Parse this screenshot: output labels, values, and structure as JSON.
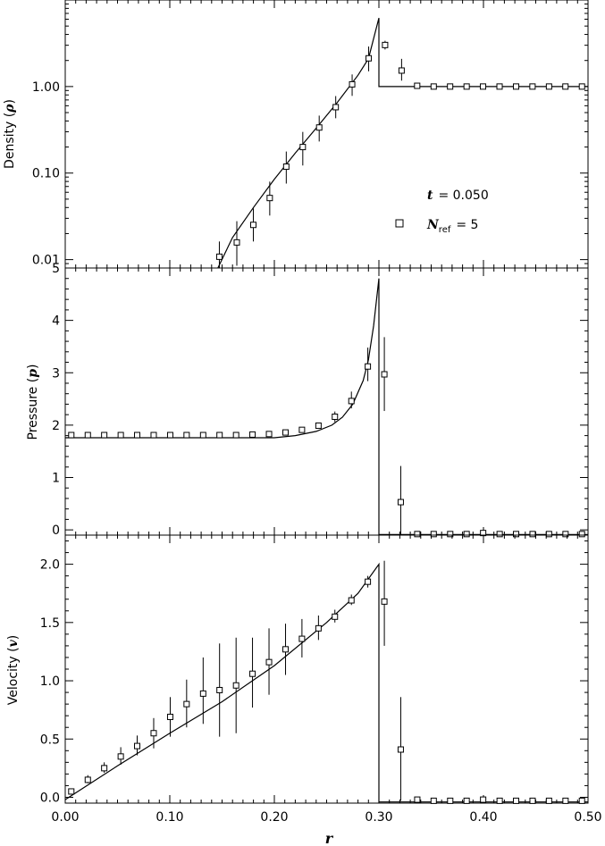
{
  "chart_data": [
    {
      "type": "line",
      "panel": "density",
      "ylabel": "Density (",
      "ylabel_symbol": "ρ",
      "yscale": "log",
      "ylim": [
        0.008,
        10
      ],
      "xlim": [
        0,
        0.5
      ],
      "yticks": [
        0.01,
        0.1,
        1.0
      ],
      "yticklabels": [
        "0.01",
        "0.10",
        "1.00"
      ],
      "annotation": {
        "t_symbol": "t",
        "t_text": "= 0.050",
        "legend_symbol": "N",
        "legend_sub": "ref",
        "legend_text": "= 5",
        "legend_marker": "square"
      },
      "series": [
        {
          "kind": "line",
          "x": [
            0.146,
            0.16,
            0.18,
            0.2,
            0.22,
            0.24,
            0.26,
            0.28,
            0.29,
            0.3,
            0.3,
            0.5
          ],
          "y": [
            0.008,
            0.018,
            0.04,
            0.085,
            0.17,
            0.33,
            0.65,
            1.35,
            2.1,
            6.2,
            1.0,
            1.0
          ]
        },
        {
          "kind": "points",
          "x": [
            0.1474,
            0.1641,
            0.1799,
            0.1956,
            0.2114,
            0.2272,
            0.2429,
            0.2587,
            0.2744,
            0.2902,
            0.3059,
            0.3217,
            0.3366,
            0.3524,
            0.3681,
            0.3839,
            0.3996,
            0.4154,
            0.4312,
            0.4469,
            0.4627,
            0.4784,
            0.4942
          ],
          "y": [
            0.0108,
            0.0158,
            0.0252,
            0.0515,
            0.1187,
            0.2,
            0.3362,
            0.5777,
            1.06,
            2.12,
            3.02,
            1.53,
            1.02,
            1.0,
            1.0,
            1.0,
            1.0,
            1.0,
            1.0,
            1.0,
            1.0,
            1.0,
            1.0
          ],
          "ylo": [
            0.0075,
            0.0085,
            0.0162,
            0.0323,
            0.0756,
            0.1224,
            0.2318,
            0.4302,
            0.78,
            1.5,
            2.68,
            1.17,
            1.0,
            1.0,
            1.0,
            1.0,
            1.0,
            1.0,
            1.0,
            1.0,
            1.0,
            1.0,
            1.0
          ],
          "yhi": [
            0.0162,
            0.0278,
            0.0391,
            0.0797,
            0.1775,
            0.299,
            0.4613,
            0.776,
            1.38,
            2.9,
            3.38,
            2.09,
            1.04,
            1.0,
            1.0,
            1.0,
            1.0,
            1.0,
            1.0,
            1.0,
            1.0,
            1.0,
            1.0
          ]
        }
      ]
    },
    {
      "type": "line",
      "panel": "pressure",
      "ylabel": "Pressure (",
      "ylabel_symbol": "p",
      "yscale": "linear",
      "ylim": [
        -0.1,
        5
      ],
      "xlim": [
        0,
        0.5
      ],
      "yticks": [
        0,
        1,
        2,
        3,
        4,
        5
      ],
      "yticklabels": [
        "0",
        "1",
        "2",
        "3",
        "4",
        "5"
      ],
      "series": [
        {
          "kind": "line",
          "x": [
            0,
            0.2,
            0.22,
            0.24,
            0.255,
            0.265,
            0.275,
            0.285,
            0.29,
            0.295,
            0.3,
            0.3,
            0.5
          ],
          "y": [
            1.76,
            1.76,
            1.8,
            1.88,
            2.0,
            2.15,
            2.4,
            2.85,
            3.25,
            3.9,
            4.8,
            -0.09,
            -0.09
          ]
        },
        {
          "kind": "points",
          "x": [
            0.0058,
            0.0216,
            0.0373,
            0.0531,
            0.0688,
            0.0846,
            0.1004,
            0.1161,
            0.1319,
            0.1476,
            0.1634,
            0.1791,
            0.1949,
            0.2107,
            0.2264,
            0.2422,
            0.2579,
            0.2737,
            0.2894,
            0.3052,
            0.3209,
            0.3367,
            0.3524,
            0.3682,
            0.3839,
            0.3997,
            0.4155,
            0.4312,
            0.447,
            0.4627,
            0.4785,
            0.4942
          ],
          "y": [
            1.81,
            1.81,
            1.81,
            1.81,
            1.81,
            1.81,
            1.81,
            1.81,
            1.81,
            1.81,
            1.81,
            1.82,
            1.83,
            1.86,
            1.91,
            1.99,
            2.16,
            2.46,
            3.12,
            2.97,
            0.53,
            -0.08,
            -0.08,
            -0.08,
            -0.08,
            -0.06,
            -0.08,
            -0.08,
            -0.08,
            -0.08,
            -0.08,
            -0.08
          ],
          "ylo": [
            1.81,
            1.81,
            1.81,
            1.81,
            1.81,
            1.81,
            1.81,
            1.81,
            1.81,
            1.81,
            1.81,
            1.82,
            1.83,
            1.86,
            1.91,
            1.96,
            2.06,
            2.32,
            2.84,
            2.27,
            -0.08,
            -0.08,
            -0.08,
            -0.08,
            -0.08,
            -0.08,
            -0.08,
            -0.08,
            -0.08,
            -0.08,
            -0.08,
            -0.08
          ],
          "yhi": [
            1.81,
            1.81,
            1.81,
            1.81,
            1.81,
            1.81,
            1.81,
            1.81,
            1.81,
            1.81,
            1.81,
            1.82,
            1.83,
            1.86,
            1.91,
            2.03,
            2.26,
            2.64,
            3.48,
            3.68,
            1.22,
            -0.08,
            -0.08,
            -0.08,
            -0.08,
            -0.04,
            -0.08,
            -0.08,
            -0.08,
            -0.08,
            -0.08,
            -0.08
          ]
        }
      ]
    },
    {
      "type": "line",
      "panel": "velocity",
      "ylabel": "Velocity (",
      "ylabel_symbol": "v",
      "yscale": "linear",
      "ylim": [
        -0.05,
        2.25
      ],
      "xlim": [
        0,
        0.5
      ],
      "yticks": [
        0,
        0.5,
        1.0,
        1.5,
        2.0
      ],
      "yticklabels": [
        "0.0",
        "0.5",
        "1.0",
        "1.5",
        "2.0"
      ],
      "xticks": [
        0,
        0.1,
        0.2,
        0.3,
        0.4,
        0.5
      ],
      "xticklabels": [
        "0.00",
        "0.10",
        "0.20",
        "0.30",
        "0.40",
        "0.50"
      ],
      "xlabel": "r",
      "series": [
        {
          "kind": "line",
          "x": [
            0.0,
            0.05,
            0.1,
            0.15,
            0.2,
            0.25,
            0.28,
            0.3,
            0.3,
            0.5
          ],
          "y": [
            -0.02,
            0.27,
            0.55,
            0.82,
            1.13,
            1.5,
            1.75,
            2.0,
            -0.04,
            -0.04
          ]
        },
        {
          "kind": "points",
          "x": [
            0.0058,
            0.0216,
            0.0373,
            0.0531,
            0.0688,
            0.0846,
            0.1004,
            0.1161,
            0.1319,
            0.1476,
            0.1634,
            0.1791,
            0.1949,
            0.2107,
            0.2264,
            0.2422,
            0.2579,
            0.2737,
            0.2894,
            0.3052,
            0.3209,
            0.3367,
            0.3524,
            0.3682,
            0.3839,
            0.3997,
            0.4155,
            0.4312,
            0.447,
            0.4627,
            0.4785,
            0.4942
          ],
          "y": [
            0.05,
            0.15,
            0.25,
            0.35,
            0.44,
            0.55,
            0.69,
            0.8,
            0.89,
            0.92,
            0.96,
            1.06,
            1.16,
            1.27,
            1.36,
            1.45,
            1.55,
            1.69,
            1.85,
            1.68,
            0.41,
            -0.02,
            -0.03,
            -0.03,
            -0.03,
            -0.02,
            -0.03,
            -0.03,
            -0.03,
            -0.03,
            -0.03,
            -0.03
          ],
          "ylo": [
            0.05,
            0.12,
            0.21,
            0.28,
            0.36,
            0.42,
            0.52,
            0.6,
            0.63,
            0.52,
            0.55,
            0.77,
            0.88,
            1.05,
            1.2,
            1.35,
            1.5,
            1.65,
            1.8,
            1.3,
            -0.03,
            -0.03,
            -0.03,
            -0.03,
            -0.03,
            -0.03,
            -0.03,
            -0.03,
            -0.03,
            -0.03,
            -0.03,
            -0.03
          ],
          "yhi": [
            0.05,
            0.19,
            0.3,
            0.43,
            0.53,
            0.68,
            0.86,
            1.01,
            1.2,
            1.32,
            1.37,
            1.37,
            1.45,
            1.49,
            1.53,
            1.56,
            1.61,
            1.74,
            1.9,
            2.03,
            0.86,
            0.0,
            -0.03,
            -0.03,
            -0.03,
            -0.01,
            -0.03,
            -0.03,
            -0.03,
            -0.03,
            -0.03,
            -0.03
          ]
        }
      ]
    }
  ]
}
